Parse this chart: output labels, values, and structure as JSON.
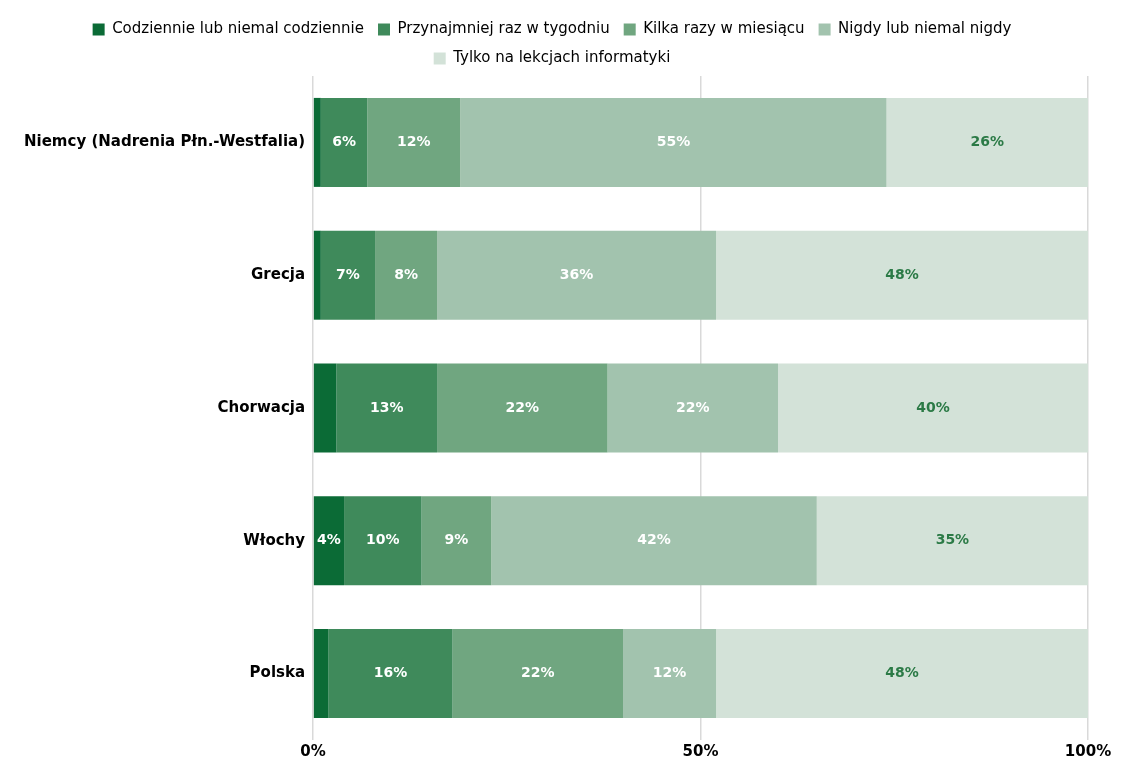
{
  "chart_data": {
    "type": "bar",
    "orientation": "horizontal",
    "stacked": true,
    "categories": [
      "Niemcy (Nadrenia Płn.-Westfalia)",
      "Grecja",
      "Chorwacja",
      "Włochy",
      "Polska"
    ],
    "series": [
      {
        "name": "Codziennie lub niemal codziennie",
        "color": "#0b6b36",
        "values": [
          1,
          1,
          3,
          4,
          2
        ],
        "value_labels": [
          null,
          null,
          null,
          "4%",
          null
        ]
      },
      {
        "name": "Przynajmniej raz w tygodniu",
        "color": "#3f8a5b",
        "values": [
          6,
          7,
          13,
          10,
          16
        ],
        "value_labels": [
          "6%",
          "7%",
          "13%",
          "10%",
          "16%"
        ]
      },
      {
        "name": "Kilka razy w miesiącu",
        "color": "#70a680",
        "values": [
          12,
          8,
          22,
          9,
          22
        ],
        "value_labels": [
          "12%",
          "8%",
          "22%",
          "9%",
          "22%"
        ]
      },
      {
        "name": "Nigdy lub niemal nigdy",
        "color": "#a2c3ae",
        "values": [
          55,
          36,
          22,
          42,
          12
        ],
        "value_labels": [
          "55%",
          "36%",
          "22%",
          "42%",
          "12%"
        ]
      },
      {
        "name": "Tylko na lekcjach informatyki",
        "color": "#d3e2d8",
        "values": [
          26,
          48,
          40,
          35,
          48
        ],
        "value_labels": [
          "26%",
          "48%",
          "40%",
          "35%",
          "48%"
        ]
      }
    ],
    "xlim": [
      0,
      100
    ],
    "xticks": [
      {
        "value": 0,
        "label": "0%"
      },
      {
        "value": 50,
        "label": "50%"
      },
      {
        "value": 100,
        "label": "100%"
      }
    ],
    "grid": "x",
    "legend": "top"
  }
}
